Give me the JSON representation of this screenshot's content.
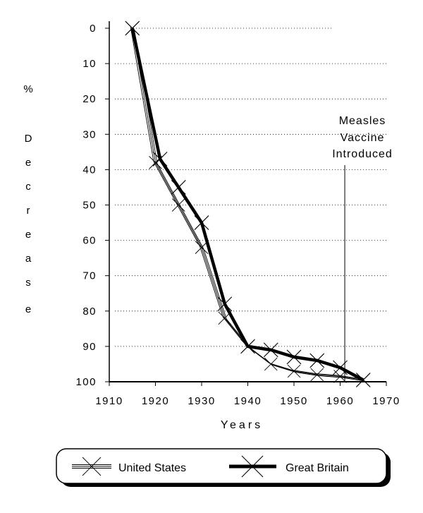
{
  "chart_data": {
    "type": "line",
    "xlabel": "Years",
    "ylabel": "% Decrease",
    "ylabel_chars": [
      "%",
      "D",
      "e",
      "c",
      "r",
      "e",
      "a",
      "s",
      "e"
    ],
    "xlim": [
      1910,
      1970
    ],
    "ylim": [
      0,
      100
    ],
    "y_inverted": true,
    "x_ticks": [
      "1910",
      "1920",
      "1930",
      "1940",
      "1950",
      "1960",
      "1970"
    ],
    "y_ticks": [
      "0",
      "10",
      "20",
      "30",
      "40",
      "50",
      "60",
      "70",
      "80",
      "90",
      "100"
    ],
    "grid": "dotted horizontal",
    "series": [
      {
        "name": "United States",
        "style": "thin",
        "color": "#000000",
        "x": [
          1915,
          1920,
          1925,
          1930,
          1935,
          1940,
          1945,
          1950,
          1955,
          1960,
          1965
        ],
        "y": [
          0,
          38,
          50,
          62,
          82,
          90,
          95,
          97,
          98,
          98.5,
          99.5
        ]
      },
      {
        "name": "Great Britain",
        "style": "thick",
        "color": "#000000",
        "x": [
          1915,
          1921,
          1925,
          1930,
          1935,
          1940,
          1945,
          1950,
          1955,
          1960,
          1965
        ],
        "y": [
          0,
          37,
          45,
          55,
          78,
          90,
          91,
          93,
          94,
          96,
          99.5
        ]
      }
    ],
    "annotation": {
      "lines": [
        "Measles",
        "Vaccine",
        "Introduced"
      ],
      "x": 1961
    },
    "legend": {
      "placement": "bottom",
      "items": [
        "United States",
        "Great Britain"
      ]
    }
  }
}
